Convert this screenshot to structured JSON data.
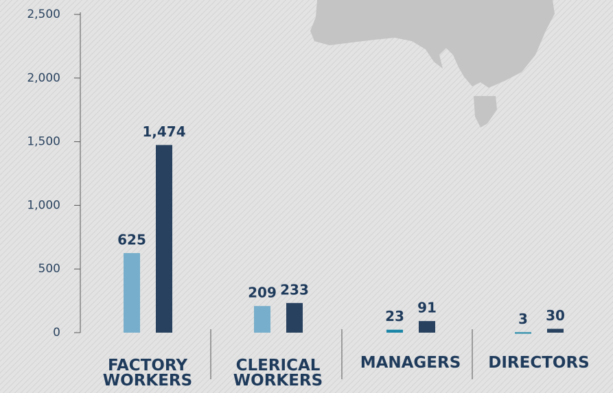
{
  "chart_data": {
    "type": "bar",
    "categories": [
      "FACTORY WORKERS",
      "CLERICAL WORKERS",
      "MANAGERS",
      "DIRECTORS"
    ],
    "series": [
      {
        "color": "#76aecb",
        "colors": [
          "#76aecb",
          "#76aecb",
          "#1a85a6",
          "#1a85a6"
        ],
        "values": [
          625,
          209,
          23,
          3
        ]
      },
      {
        "color": "#27415f",
        "values": [
          1474,
          233,
          91,
          30
        ],
        "value_labels": [
          "1,474",
          "233",
          "91",
          "30"
        ]
      }
    ],
    "ylim": [
      0,
      2500
    ],
    "yticks": [
      0,
      500,
      {
        "value": 1000,
        "label": "1,000"
      },
      {
        "value": 1500,
        "label": "1,500"
      },
      {
        "value": 2000,
        "label": "2,000"
      },
      {
        "value": 2500,
        "label": "2,500"
      }
    ]
  }
}
